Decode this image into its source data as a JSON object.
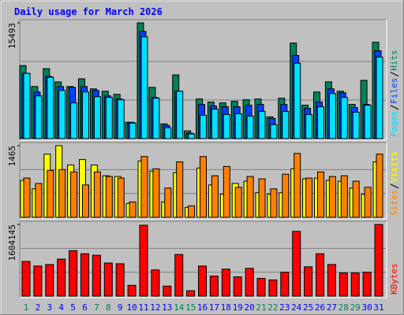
{
  "chart_data": [
    {
      "type": "bar",
      "title": "Daily usage for March 2026",
      "ylim": [
        0,
        15493
      ],
      "yticks": [
        15493
      ],
      "series": [
        {
          "name": "Hits",
          "color": "#00805c",
          "values": [
            9774,
            6967,
            9358,
            7591,
            6967,
            8006,
            6655,
            6343,
            5927,
            2184,
            15493,
            6863,
            1976,
            8526,
            1040,
            5303,
            4887,
            4783,
            4991,
            5199,
            5303,
            2911,
            5407,
            12790,
            4471,
            6239,
            7591,
            6343,
            4575,
            7799,
            12894
          ]
        },
        {
          "name": "Files",
          "color": "#0040ff",
          "values": [
            8734,
            6239,
            8318,
            6967,
            6863,
            6967,
            6447,
            5719,
            5303,
            2184,
            14349,
            5511,
            1768,
            6343,
            728,
            4575,
            4367,
            4263,
            4263,
            4471,
            4575,
            2703,
            4575,
            11126,
            4055,
            4887,
            6655,
            6135,
            4159,
            4575,
            11750
          ]
        },
        {
          "name": "Pages",
          "color": "#00e0ff",
          "values": [
            8734,
            5719,
            8214,
            6447,
            4783,
            6239,
            5615,
            5511,
            5199,
            2080,
            13621,
            5407,
            1456,
            6343,
            624,
            3119,
            3951,
            3223,
            3327,
            3015,
            3639,
            1872,
            3639,
            10086,
            3223,
            4263,
            6031,
            5511,
            3535,
            4471,
            10918
          ]
        }
      ]
    },
    {
      "type": "bar",
      "ylim": [
        0,
        1465
      ],
      "yticks": [
        1465
      ],
      "series": [
        {
          "name": "Visits",
          "color": "#ffff00",
          "values": [
            756,
            583,
            1292,
            1465,
            1071,
            1181,
            1071,
            851,
            835,
            284,
            1150,
            945,
            315,
            914,
            205,
            1008,
            662,
            473,
            693,
            740,
            504,
            473,
            504,
            992,
            788,
            803,
            756,
            740,
            599,
            473,
            1134
          ]
        },
        {
          "name": "Sites",
          "color": "#ff8000",
          "values": [
            803,
            693,
            961,
            977,
            929,
            662,
            929,
            835,
            803,
            315,
            1244,
            992,
            599,
            1134,
            236,
            1244,
            851,
            1040,
            614,
            835,
            788,
            583,
            882,
            1307,
            803,
            929,
            835,
            851,
            740,
            614,
            1292
          ]
        }
      ]
    },
    {
      "type": "bar",
      "ylim": [
        0,
        1604145
      ],
      "yticks": [
        1604145
      ],
      "categories": [
        "1",
        "2",
        "3",
        "4",
        "5",
        "6",
        "7",
        "8",
        "9",
        "10",
        "11",
        "12",
        "13",
        "14",
        "15",
        "16",
        "17",
        "18",
        "19",
        "20",
        "21",
        "22",
        "23",
        "24",
        "25",
        "26",
        "27",
        "28",
        "29",
        "30",
        "31"
      ],
      "category_colors": [
        "#00805c",
        "#0000ff",
        "#0000ff",
        "#0000ff",
        "#0000ff",
        "#0000ff",
        "#00805c",
        "#00805c",
        "#0000ff",
        "#0000ff",
        "#0000ff",
        "#0000ff",
        "#0000ff",
        "#00805c",
        "#00805c",
        "#0000ff",
        "#0000ff",
        "#0000ff",
        "#0000ff",
        "#0000ff",
        "#00805c",
        "#00805c",
        "#0000ff",
        "#0000ff",
        "#0000ff",
        "#0000ff",
        "#0000ff",
        "#00805c",
        "#00805c",
        "#0000ff",
        "#0000ff"
      ],
      "series": [
        {
          "name": "KBytes",
          "color": "#ff0000",
          "values": [
            776205,
            672711,
            707209,
            827952,
            1017691,
            948695,
            914197,
            741707,
            724458,
            241486,
            1586908,
            586466,
            224237,
            931446,
            120743,
            672711,
            448474,
            603715,
            431225,
            620964,
            396727,
            362229,
            534719,
            1448916,
            655462,
            948695,
            707209,
            517470,
            517470,
            534719,
            1604145
          ]
        }
      ]
    }
  ]
}
